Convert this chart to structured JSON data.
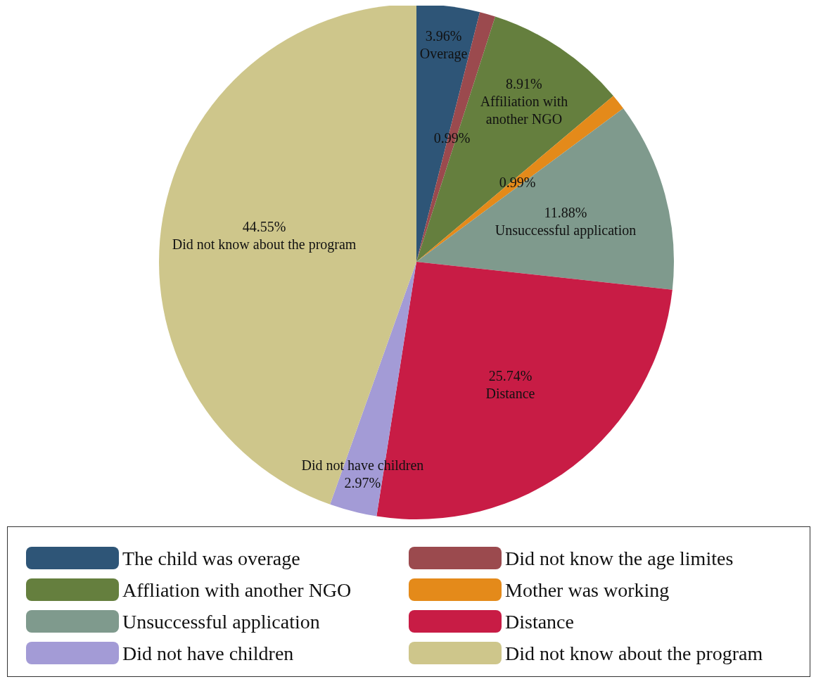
{
  "chart_data": {
    "type": "pie",
    "categories": [
      "The child was overage",
      "Did not know the age limites",
      "Affliation with another NGO",
      "Mother was working",
      "Unsuccessful application",
      "Distance",
      "Did not have children",
      "Did not know about the program"
    ],
    "values": [
      3.96,
      0.99,
      8.91,
      0.99,
      11.88,
      25.74,
      2.97,
      44.55
    ],
    "value_labels": [
      "3.96%\nOverage",
      "0.99%",
      "8.91%\nAffiliation with\nanother NGO",
      "0.99%",
      "11.88%\nUnsuccessful application",
      "25.74%\nDistance",
      "Did not have children\n2.97%",
      "44.55%\nDid not know about the program"
    ],
    "colors": [
      "#2e5577",
      "#9b4a4e",
      "#657f3e",
      "#e48a1a",
      "#7f9a8d",
      "#c81c45",
      "#a39bd6",
      "#cec68b"
    ],
    "legend": "bottom"
  }
}
